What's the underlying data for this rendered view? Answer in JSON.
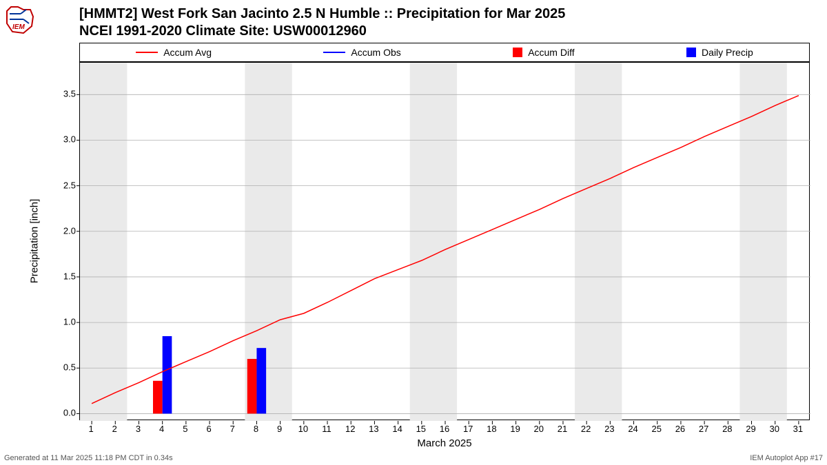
{
  "title_line1": "[HMMT2] West Fork San Jacinto 2.5 N Humble :: Precipitation for Mar 2025",
  "title_line2": "NCEI 1991-2020 Climate Site: USW00012960",
  "ylabel": "Precipitation [inch]",
  "xlabel": "March 2025",
  "footer_left": "Generated at 11 Mar 2025 11:18 PM CDT in 0.34s",
  "footer_right": "IEM Autoplot App #17",
  "legend": [
    {
      "type": "line",
      "color": "#ff0000",
      "label": "Accum Avg"
    },
    {
      "type": "line",
      "color": "#0000ff",
      "label": "Accum Obs"
    },
    {
      "type": "box",
      "color": "#ff0000",
      "label": "Accum Diff"
    },
    {
      "type": "box",
      "color": "#0000ff",
      "label": "Daily Precip"
    }
  ],
  "chart": {
    "type": "mixed",
    "xlim": [
      0.5,
      31.5
    ],
    "ylim": [
      -0.08,
      3.85
    ],
    "xticks": [
      1,
      2,
      3,
      4,
      5,
      6,
      7,
      8,
      9,
      10,
      11,
      12,
      13,
      14,
      15,
      16,
      17,
      18,
      19,
      20,
      21,
      22,
      23,
      24,
      25,
      26,
      27,
      28,
      29,
      30,
      31
    ],
    "yticks": [
      0.0,
      0.5,
      1.0,
      1.5,
      2.0,
      2.5,
      3.0,
      3.5
    ],
    "grid_color": "#b0b0b0",
    "background_color": "#ffffff",
    "weekend_band_color": "#eaeaea",
    "weekend_bands": [
      [
        1,
        2
      ],
      [
        8,
        9
      ],
      [
        15,
        16
      ],
      [
        22,
        23
      ],
      [
        29,
        30
      ]
    ],
    "line_accum_avg": {
      "color": "#ff0000",
      "width": 1.5,
      "points": [
        [
          1,
          0.11
        ],
        [
          2,
          0.23
        ],
        [
          3,
          0.34
        ],
        [
          4,
          0.46
        ],
        [
          5,
          0.57
        ],
        [
          6,
          0.68
        ],
        [
          7,
          0.8
        ],
        [
          8,
          0.91
        ],
        [
          9,
          1.03
        ],
        [
          10,
          1.1
        ],
        [
          11,
          1.22
        ],
        [
          12,
          1.35
        ],
        [
          13,
          1.48
        ],
        [
          14,
          1.58
        ],
        [
          15,
          1.68
        ],
        [
          16,
          1.8
        ],
        [
          17,
          1.91
        ],
        [
          18,
          2.02
        ],
        [
          19,
          2.13
        ],
        [
          20,
          2.24
        ],
        [
          21,
          2.36
        ],
        [
          22,
          2.47
        ],
        [
          23,
          2.58
        ],
        [
          24,
          2.7
        ],
        [
          25,
          2.81
        ],
        [
          26,
          2.92
        ],
        [
          27,
          3.04
        ],
        [
          28,
          3.15
        ],
        [
          29,
          3.26
        ],
        [
          30,
          3.38
        ],
        [
          31,
          3.49
        ]
      ]
    },
    "bars_red": {
      "color": "#ff0000",
      "width": 0.4,
      "offset": -0.2,
      "values": {
        "4": 0.36,
        "8": 0.6
      }
    },
    "bars_blue": {
      "color": "#0000ff",
      "width": 0.4,
      "offset": 0.2,
      "values": {
        "4": 0.85,
        "8": 0.72
      }
    },
    "tick_fontsize": 13,
    "label_fontsize": 15,
    "title_fontsize": 20
  },
  "logo_colors": {
    "border": "#c00000",
    "accent": "#003399"
  }
}
